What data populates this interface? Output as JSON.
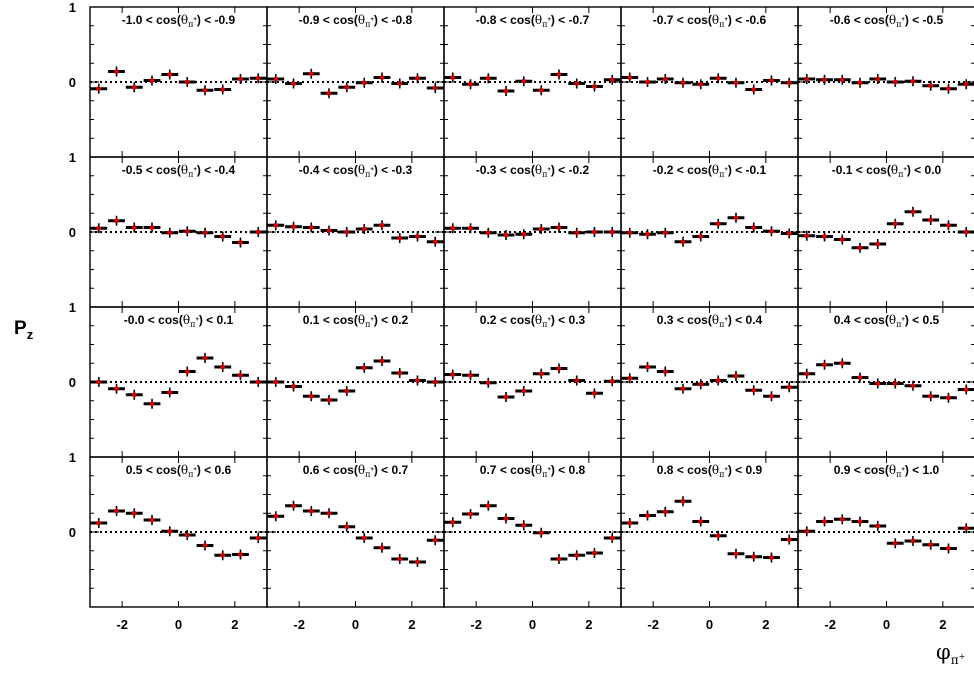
{
  "chart_data": {
    "type": "scatter",
    "ylabel": "P",
    "ylabel_sub": "z",
    "xlabel": "φ",
    "xlabel_sub": "π",
    "xlabel_sup": "+",
    "xlim": [
      -3.14159,
      3.14159
    ],
    "ylim": [
      -1,
      1
    ],
    "x_ticks": [
      "-2",
      "0",
      "2"
    ],
    "x_tick_values": [
      -2,
      0,
      2
    ],
    "y_ticks": [
      "1",
      "0"
    ],
    "y_tick_values": [
      1,
      0
    ],
    "reference_line": 0,
    "grid": false,
    "legend": "none",
    "marker_color": "#d40000",
    "x": [
      -2.83,
      -2.2,
      -1.57,
      -0.94,
      -0.31,
      0.31,
      0.94,
      1.57,
      2.2,
      2.83
    ],
    "panels": [
      {
        "label_pre": "-1.0 < cos(",
        "label_post": ") < -0.9",
        "values": [
          -0.09,
          0.14,
          -0.07,
          0.02,
          0.1,
          0.0,
          -0.11,
          -0.1,
          0.04,
          0.05
        ]
      },
      {
        "label_pre": "-0.9 < cos(",
        "label_post": ") < -0.8",
        "values": [
          0.04,
          -0.02,
          0.11,
          -0.15,
          -0.07,
          -0.01,
          0.06,
          -0.02,
          0.05,
          -0.08
        ]
      },
      {
        "label_pre": "-0.8 < cos(",
        "label_post": ") < -0.7",
        "values": [
          0.06,
          -0.03,
          0.05,
          -0.12,
          0.01,
          -0.11,
          0.1,
          -0.02,
          -0.06,
          0.03
        ]
      },
      {
        "label_pre": "-0.7 < cos(",
        "label_post": ") < -0.6",
        "values": [
          0.06,
          0.0,
          0.04,
          -0.01,
          -0.03,
          0.05,
          -0.01,
          -0.1,
          0.02,
          -0.01
        ]
      },
      {
        "label_pre": "-0.6 < cos(",
        "label_post": ") < -0.5",
        "values": [
          0.04,
          0.03,
          0.03,
          -0.01,
          0.04,
          0.0,
          0.01,
          -0.05,
          -0.09,
          -0.03
        ]
      },
      {
        "label_pre": "-0.5 < cos(",
        "label_post": ") < -0.4",
        "values": [
          0.05,
          0.15,
          0.06,
          0.06,
          -0.01,
          0.01,
          -0.01,
          -0.06,
          -0.14,
          0.0
        ]
      },
      {
        "label_pre": "-0.4 < cos(",
        "label_post": ") < -0.3",
        "values": [
          0.09,
          0.07,
          0.06,
          0.02,
          0.0,
          0.04,
          0.09,
          -0.08,
          -0.06,
          -0.13
        ]
      },
      {
        "label_pre": "-0.3 < cos(",
        "label_post": ") < -0.2",
        "values": [
          0.05,
          0.05,
          -0.01,
          -0.04,
          -0.03,
          0.04,
          0.06,
          -0.01,
          0.0,
          0.0
        ]
      },
      {
        "label_pre": "-0.2 < cos(",
        "label_post": ") < -0.1",
        "values": [
          -0.01,
          -0.03,
          -0.01,
          -0.13,
          -0.06,
          0.11,
          0.19,
          0.06,
          0.01,
          -0.02
        ]
      },
      {
        "label_pre": "-0.1 < cos(",
        "label_post": ") < 0.0",
        "values": [
          -0.05,
          -0.06,
          -0.1,
          -0.21,
          -0.16,
          0.11,
          0.27,
          0.16,
          0.09,
          0.0
        ]
      },
      {
        "label_pre": "-0.0 < cos(",
        "label_post": ") < 0.1",
        "values": [
          0.0,
          -0.09,
          -0.17,
          -0.29,
          -0.14,
          0.14,
          0.32,
          0.2,
          0.09,
          0.0
        ]
      },
      {
        "label_pre": "0.1 < cos(",
        "label_post": ") < 0.2",
        "values": [
          0.0,
          -0.06,
          -0.19,
          -0.24,
          -0.12,
          0.19,
          0.28,
          0.12,
          0.02,
          0.0
        ]
      },
      {
        "label_pre": "0.2 < cos(",
        "label_post": ") < 0.3",
        "values": [
          0.1,
          0.09,
          -0.01,
          -0.2,
          -0.12,
          0.11,
          0.18,
          0.02,
          -0.15,
          0.01
        ]
      },
      {
        "label_pre": "0.3 < cos(",
        "label_post": ") < 0.4",
        "values": [
          0.05,
          0.2,
          0.14,
          -0.09,
          -0.03,
          0.02,
          0.08,
          -0.11,
          -0.19,
          -0.07
        ]
      },
      {
        "label_pre": "0.4 < cos(",
        "label_post": ") < 0.5",
        "values": [
          0.11,
          0.23,
          0.25,
          0.06,
          -0.02,
          -0.02,
          -0.05,
          -0.19,
          -0.21,
          -0.1
        ]
      },
      {
        "label_pre": "0.5 < cos(",
        "label_post": ") < 0.6",
        "values": [
          0.12,
          0.28,
          0.25,
          0.16,
          0.01,
          -0.04,
          -0.18,
          -0.31,
          -0.3,
          -0.08
        ]
      },
      {
        "label_pre": "0.6 < cos(",
        "label_post": ") < 0.7",
        "values": [
          0.21,
          0.35,
          0.28,
          0.25,
          0.07,
          -0.08,
          -0.21,
          -0.36,
          -0.4,
          -0.11
        ]
      },
      {
        "label_pre": "0.7 < cos(",
        "label_post": ") < 0.8",
        "values": [
          0.13,
          0.24,
          0.35,
          0.18,
          0.09,
          -0.01,
          -0.36,
          -0.31,
          -0.28,
          -0.08
        ]
      },
      {
        "label_pre": "0.8 < cos(",
        "label_post": ") < 0.9",
        "values": [
          0.12,
          0.22,
          0.27,
          0.41,
          0.14,
          -0.05,
          -0.29,
          -0.33,
          -0.34,
          -0.1
        ]
      },
      {
        "label_pre": "0.9 < cos(",
        "label_post": ") < 1.0",
        "values": [
          0.01,
          0.14,
          0.17,
          0.14,
          0.08,
          -0.15,
          -0.12,
          -0.17,
          -0.22,
          0.05
        ]
      }
    ]
  },
  "label_theta": "θ",
  "label_pi": "π",
  "label_plus": "+"
}
